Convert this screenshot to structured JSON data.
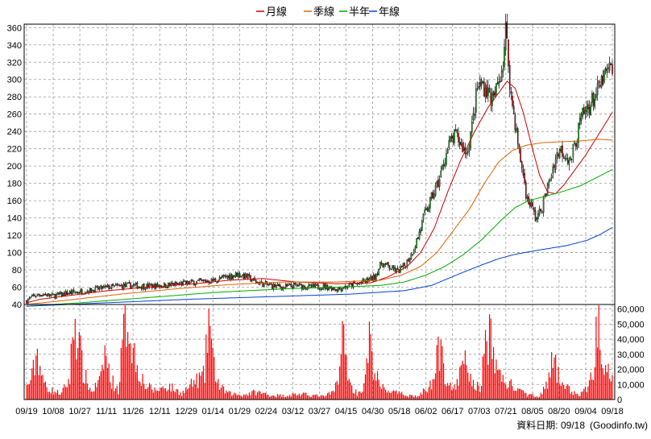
{
  "legend": [
    {
      "label": "月線",
      "color": "#cc0000"
    },
    {
      "label": "季線",
      "color": "#e06000"
    },
    {
      "label": "半年",
      "color": "#00aa00"
    },
    {
      "label": "年線",
      "color": "#0044cc"
    }
  ],
  "footer": {
    "date_label": "資料日期: 09/18",
    "source": "(Goodinfo.tw)"
  },
  "colors": {
    "up_candle": "#00cc00",
    "down_candle": "#ff0000",
    "volume": "#ff0000",
    "grid": "#999999"
  },
  "chart_data": {
    "type": "candlestick",
    "x_ticks": [
      "09/19",
      "10/08",
      "10/27",
      "11/11",
      "11/26",
      "12/11",
      "12/29",
      "01/14",
      "01/29",
      "02/24",
      "03/12",
      "03/27",
      "04/15",
      "04/30",
      "05/18",
      "06/02",
      "06/17",
      "07/03",
      "07/21",
      "08/05",
      "08/20",
      "09/04",
      "09/18"
    ],
    "price_axis": {
      "ticks": [
        40,
        60,
        80,
        100,
        120,
        140,
        160,
        180,
        200,
        220,
        240,
        260,
        280,
        300,
        320,
        340,
        360
      ],
      "ylim": [
        40,
        364
      ]
    },
    "volume_axis": {
      "ticks": [
        "0",
        "10,000",
        "20,000",
        "30,000",
        "40,000",
        "50,000",
        "60,000"
      ],
      "ylim": [
        0,
        63000
      ]
    },
    "price_anchors": [
      [
        0,
        44
      ],
      [
        5,
        50
      ],
      [
        12,
        52
      ],
      [
        20,
        50
      ],
      [
        30,
        53
      ],
      [
        45,
        56
      ],
      [
        60,
        60
      ],
      [
        75,
        62
      ],
      [
        90,
        61
      ],
      [
        110,
        63
      ],
      [
        125,
        66
      ],
      [
        140,
        68
      ],
      [
        148,
        72
      ],
      [
        156,
        75
      ],
      [
        162,
        73
      ],
      [
        170,
        66
      ],
      [
        180,
        62
      ],
      [
        190,
        60
      ],
      [
        200,
        62
      ],
      [
        210,
        60
      ],
      [
        220,
        61
      ],
      [
        230,
        58
      ],
      [
        240,
        62
      ],
      [
        250,
        66
      ],
      [
        258,
        72
      ],
      [
        263,
        88
      ],
      [
        270,
        82
      ],
      [
        275,
        78
      ],
      [
        280,
        85
      ],
      [
        285,
        98
      ],
      [
        290,
        118
      ],
      [
        294,
        140
      ],
      [
        298,
        155
      ],
      [
        302,
        170
      ],
      [
        306,
        185
      ],
      [
        310,
        210
      ],
      [
        314,
        228
      ],
      [
        318,
        235
      ],
      [
        322,
        225
      ],
      [
        326,
        215
      ],
      [
        330,
        245
      ],
      [
        334,
        290
      ],
      [
        338,
        295
      ],
      [
        342,
        285
      ],
      [
        346,
        275
      ],
      [
        350,
        300
      ],
      [
        353,
        320
      ],
      [
        355,
        358
      ],
      [
        357,
        320
      ],
      [
        359,
        280
      ],
      [
        362,
        250
      ],
      [
        365,
        215
      ],
      [
        368,
        190
      ],
      [
        371,
        160
      ],
      [
        374,
        155
      ],
      [
        377,
        140
      ],
      [
        380,
        145
      ],
      [
        383,
        158
      ],
      [
        387,
        180
      ],
      [
        391,
        205
      ],
      [
        395,
        220
      ],
      [
        399,
        215
      ],
      [
        403,
        205
      ],
      [
        407,
        230
      ],
      [
        411,
        255
      ],
      [
        415,
        265
      ],
      [
        419,
        275
      ],
      [
        423,
        285
      ],
      [
        427,
        300
      ],
      [
        431,
        310
      ],
      [
        434,
        312
      ]
    ],
    "series": [
      {
        "name": "月線",
        "values": [
          [
            0,
            42
          ],
          [
            10,
            46
          ],
          [
            30,
            50
          ],
          [
            60,
            56
          ],
          [
            90,
            60
          ],
          [
            125,
            64
          ],
          [
            150,
            68
          ],
          [
            175,
            70
          ],
          [
            200,
            66
          ],
          [
            230,
            64
          ],
          [
            255,
            65
          ],
          [
            268,
            72
          ],
          [
            282,
            84
          ],
          [
            292,
            100
          ],
          [
            302,
            128
          ],
          [
            312,
            170
          ],
          [
            322,
            208
          ],
          [
            332,
            240
          ],
          [
            342,
            268
          ],
          [
            350,
            285
          ],
          [
            356,
            298
          ],
          [
            362,
            290
          ],
          [
            368,
            262
          ],
          [
            374,
            225
          ],
          [
            380,
            190
          ],
          [
            386,
            170
          ],
          [
            392,
            168
          ],
          [
            398,
            178
          ],
          [
            406,
            195
          ],
          [
            414,
            212
          ],
          [
            422,
            232
          ],
          [
            430,
            252
          ],
          [
            434,
            262
          ]
        ]
      },
      {
        "name": "季線",
        "values": [
          [
            0,
            40
          ],
          [
            30,
            45
          ],
          [
            70,
            52
          ],
          [
            110,
            58
          ],
          [
            150,
            63
          ],
          [
            190,
            66
          ],
          [
            230,
            66
          ],
          [
            262,
            68
          ],
          [
            278,
            74
          ],
          [
            292,
            84
          ],
          [
            304,
            100
          ],
          [
            316,
            125
          ],
          [
            328,
            150
          ],
          [
            340,
            182
          ],
          [
            350,
            205
          ],
          [
            360,
            218
          ],
          [
            370,
            224
          ],
          [
            382,
            227
          ],
          [
            395,
            228
          ],
          [
            410,
            229
          ],
          [
            424,
            231
          ],
          [
            434,
            230
          ]
        ]
      },
      {
        "name": "半年",
        "values": [
          [
            0,
            38
          ],
          [
            40,
            42
          ],
          [
            90,
            48
          ],
          [
            140,
            54
          ],
          [
            190,
            58
          ],
          [
            230,
            60
          ],
          [
            262,
            62
          ],
          [
            280,
            66
          ],
          [
            296,
            74
          ],
          [
            310,
            84
          ],
          [
            324,
            98
          ],
          [
            338,
            116
          ],
          [
            352,
            138
          ],
          [
            362,
            152
          ],
          [
            372,
            160
          ],
          [
            384,
            165
          ],
          [
            396,
            170
          ],
          [
            410,
            177
          ],
          [
            424,
            188
          ],
          [
            434,
            196
          ]
        ]
      },
      {
        "name": "年線",
        "values": [
          [
            0,
            38
          ],
          [
            60,
            42
          ],
          [
            120,
            46
          ],
          [
            180,
            49
          ],
          [
            240,
            52
          ],
          [
            280,
            56
          ],
          [
            300,
            62
          ],
          [
            320,
            75
          ],
          [
            336,
            85
          ],
          [
            350,
            93
          ],
          [
            362,
            98
          ],
          [
            380,
            103
          ],
          [
            400,
            108
          ],
          [
            415,
            114
          ],
          [
            425,
            121
          ],
          [
            434,
            129
          ]
        ]
      }
    ],
    "volume_anchors": [
      [
        0,
        8000
      ],
      [
        4,
        15000
      ],
      [
        8,
        32000
      ],
      [
        12,
        12000
      ],
      [
        18,
        6000
      ],
      [
        26,
        4000
      ],
      [
        32,
        14000
      ],
      [
        35,
        55000
      ],
      [
        38,
        42000
      ],
      [
        42,
        18000
      ],
      [
        48,
        5000
      ],
      [
        55,
        13000
      ],
      [
        58,
        32000
      ],
      [
        62,
        14000
      ],
      [
        68,
        6000
      ],
      [
        72,
        44000
      ],
      [
        75,
        57000
      ],
      [
        78,
        38000
      ],
      [
        82,
        22000
      ],
      [
        88,
        9000
      ],
      [
        95,
        6000
      ],
      [
        105,
        9000
      ],
      [
        115,
        4000
      ],
      [
        125,
        12000
      ],
      [
        132,
        16000
      ],
      [
        135,
        58000
      ],
      [
        138,
        25000
      ],
      [
        143,
        8000
      ],
      [
        150,
        4000
      ],
      [
        160,
        3000
      ],
      [
        170,
        5000
      ],
      [
        180,
        3000
      ],
      [
        190,
        2500
      ],
      [
        200,
        3500
      ],
      [
        210,
        3000
      ],
      [
        220,
        2000
      ],
      [
        228,
        5000
      ],
      [
        232,
        22000
      ],
      [
        234,
        42000
      ],
      [
        236,
        32000
      ],
      [
        240,
        9000
      ],
      [
        245,
        4000
      ],
      [
        250,
        8000
      ],
      [
        254,
        38000
      ],
      [
        257,
        22000
      ],
      [
        262,
        8000
      ],
      [
        268,
        6000
      ],
      [
        275,
        4000
      ],
      [
        282,
        3000
      ],
      [
        290,
        2000
      ],
      [
        300,
        10000
      ],
      [
        304,
        38000
      ],
      [
        307,
        28000
      ],
      [
        312,
        12000
      ],
      [
        318,
        6000
      ],
      [
        322,
        20000
      ],
      [
        326,
        25000
      ],
      [
        330,
        10000
      ],
      [
        336,
        8000
      ],
      [
        340,
        35000
      ],
      [
        343,
        42000
      ],
      [
        346,
        28000
      ],
      [
        352,
        14000
      ],
      [
        356,
        11000
      ],
      [
        360,
        9000
      ],
      [
        366,
        5000
      ],
      [
        372,
        3000
      ],
      [
        380,
        2500
      ],
      [
        386,
        10000
      ],
      [
        390,
        26000
      ],
      [
        393,
        18000
      ],
      [
        398,
        10000
      ],
      [
        404,
        5000
      ],
      [
        410,
        3000
      ],
      [
        416,
        8000
      ],
      [
        420,
        20000
      ],
      [
        424,
        60000
      ],
      [
        427,
        30000
      ],
      [
        431,
        25000
      ],
      [
        434,
        20000
      ]
    ],
    "sessions": 435
  }
}
